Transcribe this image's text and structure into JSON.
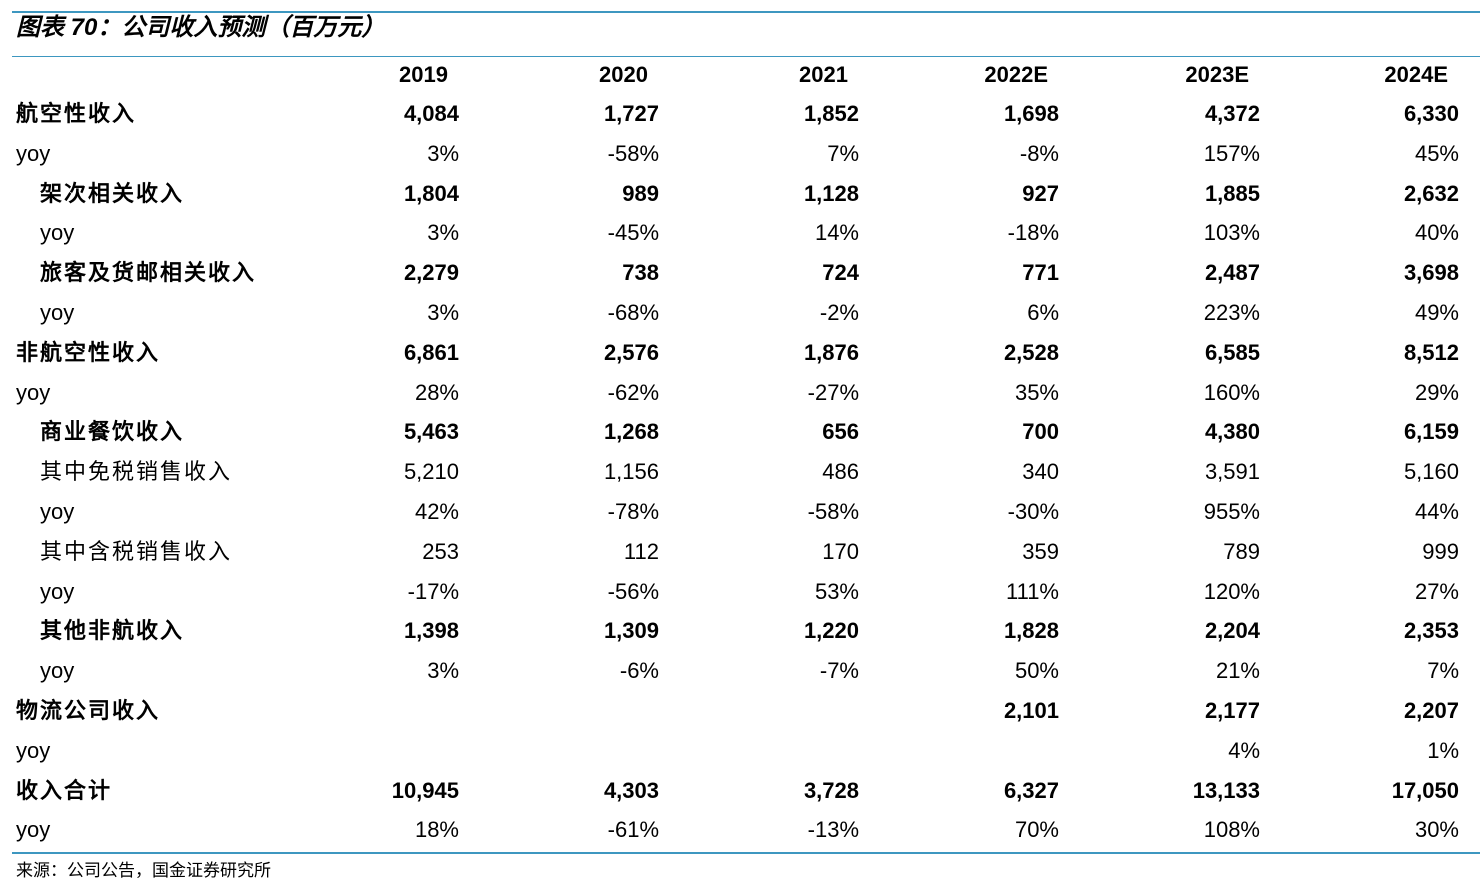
{
  "title": "图表 70：公司收入预测（百万元）",
  "header": [
    "2019",
    "2020",
    "2021",
    "2022E",
    "2023E",
    "2024E"
  ],
  "rows": [
    {
      "label": "航空性收入",
      "bold": true,
      "level": 0,
      "cells": [
        "4,084",
        "1,727",
        "1,852",
        "1,698",
        "4,372",
        "6,330"
      ]
    },
    {
      "label": "yoy",
      "bold": false,
      "level": 0,
      "cells": [
        "3%",
        "-58%",
        "7%",
        "-8%",
        "157%",
        "45%"
      ]
    },
    {
      "label": "架次相关收入",
      "bold": true,
      "level": 1,
      "cells": [
        "1,804",
        "989",
        "1,128",
        "927",
        "1,885",
        "2,632"
      ]
    },
    {
      "label": "yoy",
      "bold": false,
      "level": 1,
      "cells": [
        "3%",
        "-45%",
        "14%",
        "-18%",
        "103%",
        "40%"
      ]
    },
    {
      "label": "旅客及货邮相关收入",
      "bold": true,
      "level": 1,
      "cells": [
        "2,279",
        "738",
        "724",
        "771",
        "2,487",
        "3,698"
      ]
    },
    {
      "label": "yoy",
      "bold": false,
      "level": 1,
      "cells": [
        "3%",
        "-68%",
        "-2%",
        "6%",
        "223%",
        "49%"
      ]
    },
    {
      "label": "非航空性收入",
      "bold": true,
      "level": 0,
      "cells": [
        "6,861",
        "2,576",
        "1,876",
        "2,528",
        "6,585",
        "8,512"
      ]
    },
    {
      "label": "yoy",
      "bold": false,
      "level": 0,
      "cells": [
        "28%",
        "-62%",
        "-27%",
        "35%",
        "160%",
        "29%"
      ]
    },
    {
      "label": "商业餐饮收入",
      "bold": true,
      "level": 1,
      "cells": [
        "5,463",
        "1,268",
        "656",
        "700",
        "4,380",
        "6,159"
      ]
    },
    {
      "label": "其中免税销售收入",
      "bold": false,
      "level": 1,
      "cells": [
        "5,210",
        "1,156",
        "486",
        "340",
        "3,591",
        "5,160"
      ]
    },
    {
      "label": "yoy",
      "bold": false,
      "level": 1,
      "cells": [
        "42%",
        "-78%",
        "-58%",
        "-30%",
        "955%",
        "44%"
      ]
    },
    {
      "label": "其中含税销售收入",
      "bold": false,
      "level": 1,
      "cells": [
        "253",
        "112",
        "170",
        "359",
        "789",
        "999"
      ]
    },
    {
      "label": "yoy",
      "bold": false,
      "level": 1,
      "cells": [
        "-17%",
        "-56%",
        "53%",
        "111%",
        "120%",
        "27%"
      ]
    },
    {
      "label": "其他非航收入",
      "bold": true,
      "level": 1,
      "cells": [
        "1,398",
        "1,309",
        "1,220",
        "1,828",
        "2,204",
        "2,353"
      ]
    },
    {
      "label": "yoy",
      "bold": false,
      "level": 1,
      "cells": [
        "3%",
        "-6%",
        "-7%",
        "50%",
        "21%",
        "7%"
      ]
    },
    {
      "label": "物流公司收入",
      "bold": true,
      "level": 0,
      "cells": [
        null,
        null,
        null,
        "2,101",
        "2,177",
        "2,207"
      ]
    },
    {
      "label": "yoy",
      "bold": false,
      "level": 0,
      "cells": [
        null,
        null,
        null,
        null,
        "4%",
        "1%"
      ]
    },
    {
      "label": "收入合计",
      "bold": true,
      "level": 0,
      "cells": [
        "10,945",
        "4,303",
        "3,728",
        "6,327",
        "13,133",
        "17,050"
      ]
    },
    {
      "label": "yoy",
      "bold": false,
      "level": 0,
      "cells": [
        "18%",
        "-61%",
        "-13%",
        "70%",
        "108%",
        "30%"
      ]
    }
  ],
  "source": "来源：公司公告，国金证券研究所"
}
